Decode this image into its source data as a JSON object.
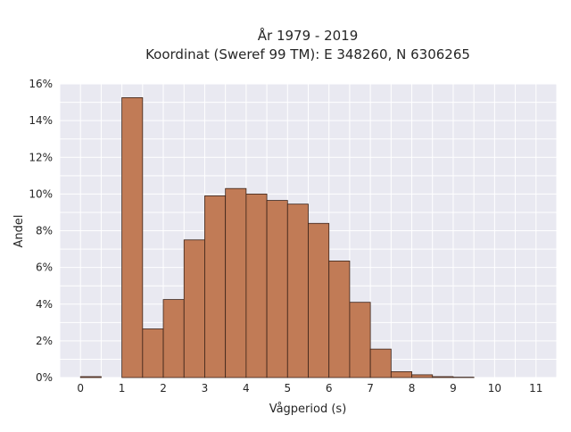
{
  "chart_data": {
    "type": "bar",
    "title_line1": "År 1979 - 2019",
    "title_line2": "Koordinat (Sweref 99 TM): E 348260, N 6306265",
    "xlabel": "Vågperiod (s)",
    "ylabel": "Andel",
    "xlim": [
      -0.5,
      11.5
    ],
    "ylim": [
      0,
      16
    ],
    "x_ticks": [
      0,
      1,
      2,
      3,
      4,
      5,
      6,
      7,
      8,
      9,
      10,
      11
    ],
    "y_ticks": [
      0,
      2,
      4,
      6,
      8,
      10,
      12,
      14,
      16
    ],
    "y_tick_labels": [
      "0%",
      "2%",
      "4%",
      "6%",
      "8%",
      "10%",
      "12%",
      "14%",
      "16%"
    ],
    "bin_width": 0.5,
    "bins": [
      {
        "x0": 0.0,
        "value": 0.05
      },
      {
        "x0": 1.0,
        "value": 15.25
      },
      {
        "x0": 1.5,
        "value": 2.65
      },
      {
        "x0": 2.0,
        "value": 4.25
      },
      {
        "x0": 2.5,
        "value": 7.5
      },
      {
        "x0": 3.0,
        "value": 9.9
      },
      {
        "x0": 3.5,
        "value": 10.3
      },
      {
        "x0": 4.0,
        "value": 10.0
      },
      {
        "x0": 4.5,
        "value": 9.65
      },
      {
        "x0": 5.0,
        "value": 9.45
      },
      {
        "x0": 5.5,
        "value": 8.4
      },
      {
        "x0": 6.0,
        "value": 6.35
      },
      {
        "x0": 6.5,
        "value": 4.1
      },
      {
        "x0": 7.0,
        "value": 1.55
      },
      {
        "x0": 7.5,
        "value": 0.32
      },
      {
        "x0": 8.0,
        "value": 0.15
      },
      {
        "x0": 8.5,
        "value": 0.05
      },
      {
        "x0": 9.0,
        "value": 0.02
      }
    ],
    "grid": true,
    "colors": {
      "bar_fill": "#c17b56",
      "bar_stroke": "#3a2218",
      "plot_background": "#e9e9f1",
      "grid": "#ffffff"
    }
  }
}
